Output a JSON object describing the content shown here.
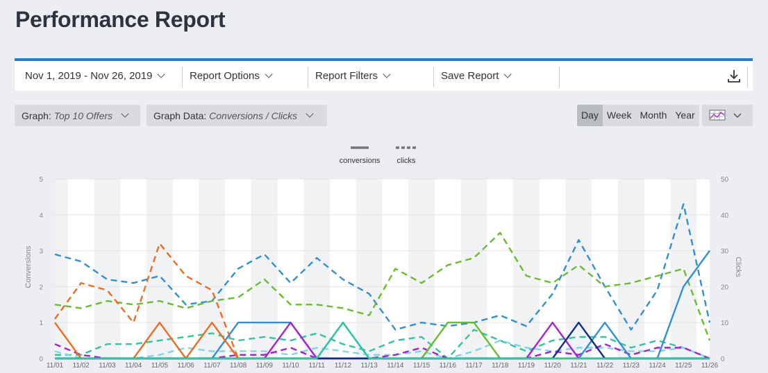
{
  "page": {
    "title": "Performance Report"
  },
  "toolbar": {
    "date_range": "Nov 1, 2019 - Nov 26, 2019",
    "report_options": "Report Options",
    "report_filters": "Report Filters",
    "save_report": "Save Report",
    "download_icon": "download-icon"
  },
  "controls": {
    "graph_label": "Graph:",
    "graph_value": "Top 10 Offers",
    "graph_data_label": "Graph Data:",
    "graph_data_value": "Conversions / Clicks",
    "periods": [
      "Day",
      "Week",
      "Month",
      "Year"
    ],
    "active_period": "Day",
    "chart_type_icon": "chart-grid-icon"
  },
  "chart_data": {
    "type": "line",
    "legend": [
      "conversions",
      "clicks"
    ],
    "legend_position": "top-center",
    "ylabel": "Conversions",
    "y2label": "Clicks",
    "ylim": [
      0,
      5
    ],
    "y2lim": [
      0,
      50
    ],
    "yticks": [
      0,
      1,
      2,
      3,
      4,
      5
    ],
    "y2ticks": [
      0,
      10,
      20,
      30,
      40,
      50
    ],
    "categories": [
      "11/01",
      "11/02",
      "11/03",
      "11/04",
      "11/05",
      "11/06",
      "11/07",
      "11/08",
      "11/09",
      "11/10",
      "11/11",
      "11/12",
      "11/13",
      "11/14",
      "11/15",
      "11/16",
      "11/17",
      "11/18",
      "11/19",
      "11/20",
      "11/21",
      "11/22",
      "11/23",
      "11/24",
      "11/25",
      "11/26"
    ],
    "series": [
      {
        "color": "#2f8fd6",
        "metric": "clicks",
        "values": [
          29,
          27,
          22,
          21,
          23,
          15,
          16,
          25,
          29,
          21,
          28,
          22,
          18,
          8,
          10,
          9,
          10,
          12,
          9,
          18,
          33,
          20,
          8,
          19,
          43,
          10
        ]
      },
      {
        "color": "#67bd2d",
        "metric": "clicks",
        "values": [
          15,
          14,
          16,
          15,
          16,
          14,
          16,
          17,
          22,
          15,
          15,
          14,
          12,
          25,
          21,
          26,
          28,
          35,
          23,
          21,
          26,
          20,
          21,
          23,
          25,
          5
        ]
      },
      {
        "color": "#f26b1d",
        "metric": "clicks",
        "values": [
          11,
          21,
          19,
          10,
          32,
          23,
          19,
          0,
          0,
          0,
          0,
          0,
          0,
          0,
          0,
          0,
          0,
          0,
          0,
          0,
          0,
          0,
          0,
          0,
          0,
          0
        ]
      },
      {
        "color": "#2ec6a0",
        "metric": "clicks",
        "values": [
          1,
          1,
          4,
          4,
          5,
          6,
          7,
          5,
          6,
          5,
          7,
          4,
          2,
          5,
          6,
          0,
          8,
          5,
          2,
          5,
          6,
          6,
          3,
          5,
          3,
          0
        ]
      },
      {
        "color": "#7fd3f0",
        "metric": "clicks",
        "values": [
          2,
          0,
          0,
          0,
          1,
          3,
          2,
          2,
          2,
          1,
          3,
          2,
          1,
          1,
          2,
          0,
          2,
          5,
          3,
          2,
          3,
          3,
          2,
          2,
          3,
          0
        ]
      },
      {
        "color": "#a81fd1",
        "metric": "clicks",
        "values": [
          4,
          1,
          0,
          0,
          0,
          0,
          0,
          1,
          1,
          3,
          0,
          0,
          0,
          1,
          3,
          0,
          0,
          0,
          0,
          2,
          1,
          4,
          1,
          3,
          3,
          0
        ]
      },
      {
        "color": "#2f8fd6",
        "metric": "conversions",
        "values": [
          0,
          0,
          0,
          0,
          0,
          0,
          0,
          1,
          1,
          1,
          0,
          1,
          0,
          0,
          0,
          0,
          0,
          0,
          0,
          0,
          0,
          1,
          0,
          0,
          2,
          3
        ]
      },
      {
        "color": "#67bd2d",
        "metric": "conversions",
        "values": [
          0,
          0,
          0,
          0,
          0,
          0,
          0,
          0,
          0,
          0,
          0,
          0,
          0,
          0,
          0,
          1,
          1,
          0,
          0,
          0,
          0,
          0,
          0,
          0,
          0,
          0
        ]
      },
      {
        "color": "#f26b1d",
        "metric": "conversions",
        "values": [
          1,
          0,
          0,
          0,
          1,
          0,
          1,
          0,
          0,
          0,
          0,
          0,
          0,
          0,
          0,
          0,
          0,
          0,
          0,
          0,
          0,
          0,
          0,
          0,
          0,
          0
        ]
      },
      {
        "color": "#a81fd1",
        "metric": "conversions",
        "values": [
          0,
          0,
          0,
          0,
          0,
          0,
          0,
          0,
          0,
          1,
          0,
          0,
          0,
          0,
          0,
          0,
          0,
          0,
          0,
          1,
          0,
          0,
          0,
          0,
          0,
          0
        ]
      },
      {
        "color": "#0e2a8a",
        "metric": "conversions",
        "values": [
          0,
          0,
          0,
          0,
          0,
          0,
          0,
          0,
          0,
          0,
          0,
          0,
          0,
          0,
          0,
          0,
          0,
          0,
          0,
          0,
          1,
          0,
          0,
          0,
          0,
          0
        ]
      },
      {
        "color": "#2ec6a0",
        "metric": "conversions",
        "values": [
          0,
          0,
          0,
          0,
          0,
          0,
          0,
          0,
          0,
          0,
          0,
          1,
          0,
          0,
          0,
          0,
          0,
          0,
          0,
          0,
          0,
          0,
          0,
          0,
          0,
          0
        ]
      }
    ]
  }
}
